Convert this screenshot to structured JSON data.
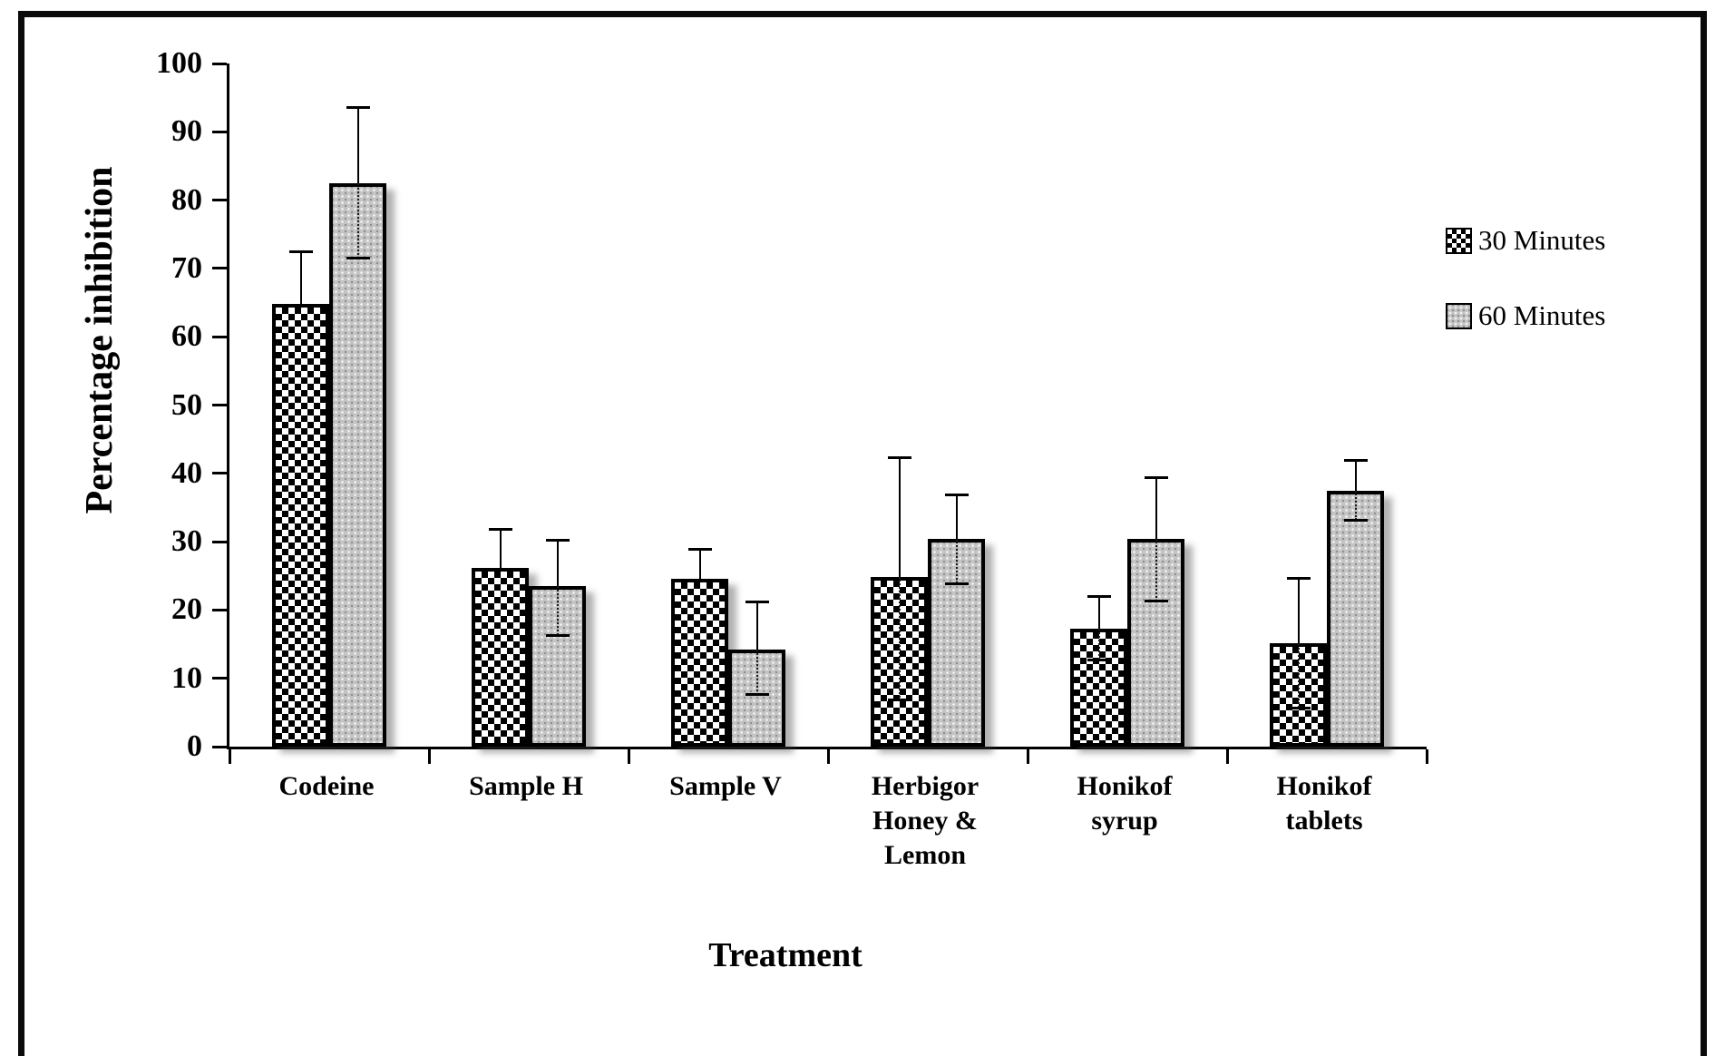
{
  "figure": {
    "ylabel": "Percentage inhibition",
    "xlabel": "Treatment"
  },
  "chart_data": {
    "type": "bar",
    "title": "",
    "ylabel": "Percentage inhibition",
    "xlabel": "Treatment",
    "ylim": [
      0,
      100
    ],
    "yticks": [
      0,
      10,
      20,
      30,
      40,
      50,
      60,
      70,
      80,
      90,
      100
    ],
    "grid": false,
    "legend_position": "right",
    "error_bars": true,
    "categories": [
      "Codeine",
      "Sample H",
      "Sample V",
      "Herbigor Honey & Lemon",
      "Honikof syrup",
      "Honikof tablets"
    ],
    "category_display": [
      [
        "Codeine"
      ],
      [
        "Sample H"
      ],
      [
        "Sample V"
      ],
      [
        "Herbigor",
        "Honey &",
        "Lemon"
      ],
      [
        "Honikof",
        "syrup"
      ],
      [
        "Honikof",
        "tablets"
      ]
    ],
    "series": [
      {
        "name": "30 Minutes",
        "pattern": "checker",
        "values": [
          64.8,
          26.2,
          24.6,
          24.8,
          17.3,
          15.2
        ],
        "error_high": [
          72.5,
          31.8,
          28.9,
          42.3,
          22.0,
          24.7
        ],
        "error_low": [
          null,
          null,
          null,
          6.8,
          12.7,
          5.7
        ]
      },
      {
        "name": "60 Minutes",
        "pattern": "dots",
        "values": [
          82.5,
          23.5,
          14.2,
          30.4,
          30.4,
          37.4
        ],
        "error_high": [
          93.5,
          30.2,
          21.2,
          36.8,
          39.4,
          41.9
        ],
        "error_low": [
          71.5,
          16.3,
          7.6,
          23.9,
          21.3,
          33.2
        ]
      }
    ],
    "colors": {
      "bar_outline": "#000000",
      "checker_dark": "#000000",
      "dots_fill": "#c4c4c4",
      "text": "#000000",
      "frame": "#0a0a0a"
    }
  }
}
